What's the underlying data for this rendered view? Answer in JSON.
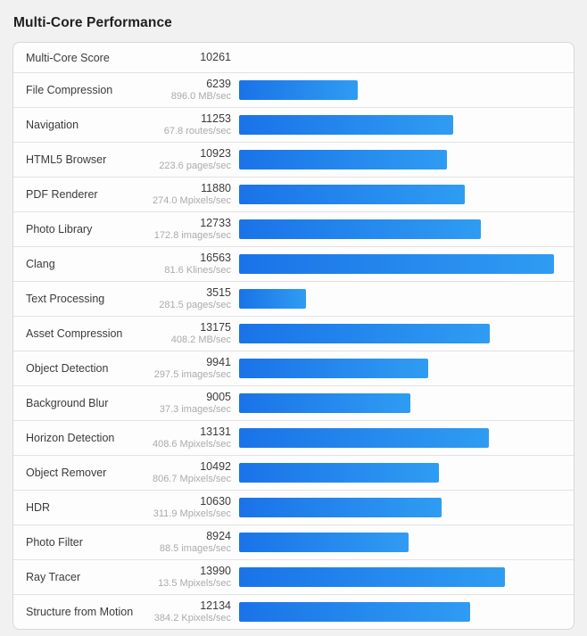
{
  "title": "Multi-Core Performance",
  "summary": {
    "label": "Multi-Core Score",
    "score": "10261"
  },
  "rows": [
    {
      "label": "File Compression",
      "score": "6239",
      "rate": "896.0 MB/sec"
    },
    {
      "label": "Navigation",
      "score": "11253",
      "rate": "67.8 routes/sec"
    },
    {
      "label": "HTML5 Browser",
      "score": "10923",
      "rate": "223.6 pages/sec"
    },
    {
      "label": "PDF Renderer",
      "score": "11880",
      "rate": "274.0 Mpixels/sec"
    },
    {
      "label": "Photo Library",
      "score": "12733",
      "rate": "172.8 images/sec"
    },
    {
      "label": "Clang",
      "score": "16563",
      "rate": "81.6 Klines/sec"
    },
    {
      "label": "Text Processing",
      "score": "3515",
      "rate": "281.5 pages/sec"
    },
    {
      "label": "Asset Compression",
      "score": "13175",
      "rate": "408.2 MB/sec"
    },
    {
      "label": "Object Detection",
      "score": "9941",
      "rate": "297.5 images/sec"
    },
    {
      "label": "Background Blur",
      "score": "9005",
      "rate": "37.3 images/sec"
    },
    {
      "label": "Horizon Detection",
      "score": "13131",
      "rate": "408.6 Mpixels/sec"
    },
    {
      "label": "Object Remover",
      "score": "10492",
      "rate": "806.7 Mpixels/sec"
    },
    {
      "label": "HDR",
      "score": "10630",
      "rate": "311.9 Mpixels/sec"
    },
    {
      "label": "Photo Filter",
      "score": "8924",
      "rate": "88.5 images/sec"
    },
    {
      "label": "Ray Tracer",
      "score": "13990",
      "rate": "13.5 Mpixels/sec"
    },
    {
      "label": "Structure from Motion",
      "score": "12134",
      "rate": "384.2 Kpixels/sec"
    }
  ],
  "colors": {
    "page_background": "#f1f1f1",
    "card_background": "#fdfdfd",
    "card_border": "#d8d8d8",
    "row_divider": "#e2e2e2",
    "bar_gradient_start": "#1a73e8",
    "bar_gradient_end": "#2f9cf2"
  },
  "chart_data": {
    "type": "bar",
    "title": "Multi-Core Performance",
    "overall": {
      "label": "Multi-Core Score",
      "value": 10261
    },
    "categories": [
      "File Compression",
      "Navigation",
      "HTML5 Browser",
      "PDF Renderer",
      "Photo Library",
      "Clang",
      "Text Processing",
      "Asset Compression",
      "Object Detection",
      "Background Blur",
      "Horizon Detection",
      "Object Remover",
      "HDR",
      "Photo Filter",
      "Ray Tracer",
      "Structure from Motion"
    ],
    "values": [
      6239,
      11253,
      10923,
      11880,
      12733,
      16563,
      3515,
      13175,
      9941,
      9005,
      13131,
      10492,
      10630,
      8924,
      13990,
      12134
    ],
    "rate_labels": [
      "896.0 MB/sec",
      "67.8 routes/sec",
      "223.6 pages/sec",
      "274.0 Mpixels/sec",
      "172.8 images/sec",
      "81.6 Klines/sec",
      "281.5 pages/sec",
      "408.2 MB/sec",
      "297.5 images/sec",
      "37.3 images/sec",
      "408.6 Mpixels/sec",
      "806.7 Mpixels/sec",
      "311.9 Mpixels/sec",
      "88.5 images/sec",
      "13.5 Mpixels/sec",
      "384.2 Kpixels/sec"
    ],
    "orientation": "horizontal",
    "xlim": [
      0,
      16563
    ],
    "grid": false,
    "legend": false
  }
}
